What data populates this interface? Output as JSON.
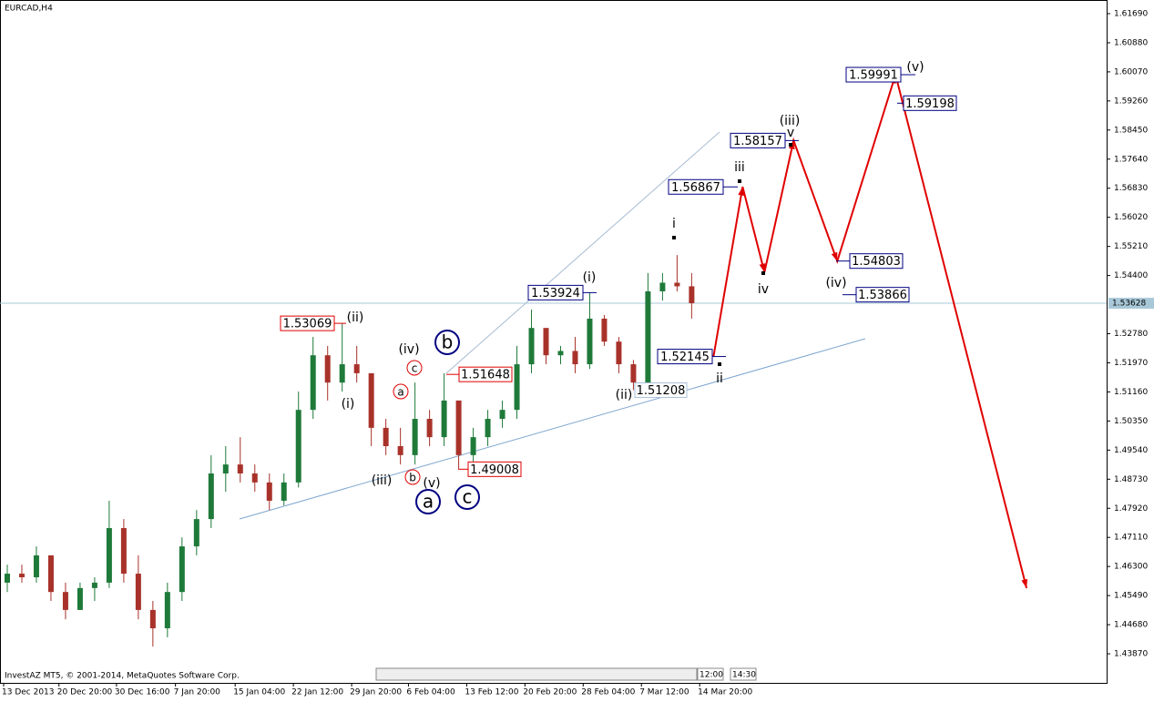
{
  "chart_data": {
    "type": "candlestick",
    "title": "EURCAD,H4",
    "footer": "InvestAZ MT5, © 2001-2014, MetaQuotes Software Corp.",
    "time_buttons": [
      "12:00",
      "14:30"
    ],
    "up_color": "#1f7a3a",
    "down_color": "#a8322a",
    "x": [
      1,
      3,
      5,
      7,
      9,
      11,
      13,
      15,
      17,
      19,
      21,
      23,
      25,
      27,
      29,
      31,
      33,
      35,
      37,
      39,
      41,
      43,
      45,
      47,
      49,
      51,
      53,
      55,
      57,
      59,
      61,
      63,
      65,
      67,
      69,
      71,
      73,
      75,
      77,
      79,
      81,
      83,
      85,
      87,
      89,
      91,
      93,
      95
    ],
    "open": [
      1.4585,
      1.461,
      1.46,
      1.4661,
      1.4559,
      1.4509,
      1.457,
      1.4585,
      1.4737,
      1.461,
      1.4509,
      1.4458,
      1.4559,
      1.4686,
      1.4762,
      1.4889,
      1.4914,
      1.4889,
      1.4864,
      1.4813,
      1.4864,
      1.5066,
      1.5218,
      1.5142,
      1.5193,
      1.5168,
      1.5016,
      1.4965,
      1.494,
      1.5041,
      1.499,
      1.5092,
      1.494,
      1.499,
      1.5041,
      1.5066,
      1.5193,
      1.5294,
      1.5218,
      1.523,
      1.5193,
      1.532,
      1.5256,
      1.5193,
      1.5142,
      1.5396,
      1.542,
      1.541
    ],
    "high": [
      1.4635,
      1.4635,
      1.4686,
      1.4661,
      1.4585,
      1.4585,
      1.46,
      1.4813,
      1.4762,
      1.4661,
      1.4534,
      1.4585,
      1.4711,
      1.4787,
      1.494,
      1.4965,
      1.499,
      1.4914,
      1.4889,
      1.4889,
      1.5117,
      1.5269,
      1.5244,
      1.5307,
      1.5244,
      1.5168,
      1.5041,
      1.5016,
      1.5142,
      1.5066,
      1.5168,
      1.5092,
      1.5016,
      1.5066,
      1.5092,
      1.5244,
      1.5345,
      1.5294,
      1.5244,
      1.5269,
      1.5392,
      1.533,
      1.5269,
      1.5205,
      1.5447,
      1.5447,
      1.5497,
      1.5447
    ],
    "low": [
      1.4559,
      1.4585,
      1.4585,
      1.4534,
      1.4483,
      1.4509,
      1.4534,
      1.457,
      1.4585,
      1.4483,
      1.4407,
      1.4433,
      1.4534,
      1.4661,
      1.4737,
      1.4838,
      1.4864,
      1.4838,
      1.4787,
      1.48,
      1.485,
      1.5041,
      1.5092,
      1.5117,
      1.5142,
      1.4965,
      1.494,
      1.4914,
      1.4914,
      1.4965,
      1.4965,
      1.4901,
      1.4914,
      1.4965,
      1.5016,
      1.5041,
      1.5168,
      1.5193,
      1.5193,
      1.5168,
      1.518,
      1.5244,
      1.5168,
      1.5121,
      1.513,
      1.537,
      1.5396,
      1.532
    ],
    "close": [
      1.461,
      1.46,
      1.4661,
      1.4559,
      1.4509,
      1.457,
      1.4585,
      1.4737,
      1.461,
      1.4509,
      1.4458,
      1.4559,
      1.4686,
      1.4762,
      1.4889,
      1.4914,
      1.4889,
      1.4864,
      1.4813,
      1.4864,
      1.5066,
      1.5218,
      1.5142,
      1.5193,
      1.5168,
      1.5016,
      1.4965,
      1.494,
      1.5041,
      1.499,
      1.5092,
      1.494,
      1.499,
      1.5041,
      1.5066,
      1.5193,
      1.5294,
      1.5218,
      1.523,
      1.5193,
      1.532,
      1.5256,
      1.5193,
      1.5142,
      1.5396,
      1.542,
      1.541,
      1.5363
    ],
    "xlim": [
      0,
      152
    ],
    "xticks": [
      {
        "value": 0,
        "label": "13 Dec 2013"
      },
      {
        "value": 7.6,
        "label": "20 Dec 20:00"
      },
      {
        "value": 15.5,
        "label": "30 Dec 16:00"
      },
      {
        "value": 23.6,
        "label": "7 Jan 20:00"
      },
      {
        "value": 31.8,
        "label": "15 Jan 04:00"
      },
      {
        "value": 39.8,
        "label": "22 Jan 12:00"
      },
      {
        "value": 47.8,
        "label": "29 Jan 20:00"
      },
      {
        "value": 55.6,
        "label": "6 Feb 04:00"
      },
      {
        "value": 63.6,
        "label": "13 Feb 12:00"
      },
      {
        "value": 71.6,
        "label": "20 Feb 20:00"
      },
      {
        "value": 79.6,
        "label": "28 Feb 04:00"
      },
      {
        "value": 87.6,
        "label": "7 Mar 12:00"
      },
      {
        "value": 95.6,
        "label": "14 Mar 20:00"
      }
    ],
    "ylim": [
      1.4306,
      1.6207
    ],
    "yticks": [
      {
        "value": 1.4387,
        "label": "1.43870"
      },
      {
        "value": 1.4468,
        "label": "1.44680"
      },
      {
        "value": 1.4549,
        "label": "1.45490"
      },
      {
        "value": 1.463,
        "label": "1.46300"
      },
      {
        "value": 1.4711,
        "label": "1.47110"
      },
      {
        "value": 1.4792,
        "label": "1.47920"
      },
      {
        "value": 1.4873,
        "label": "1.48730"
      },
      {
        "value": 1.4954,
        "label": "1.49540"
      },
      {
        "value": 1.5035,
        "label": "1.50350"
      },
      {
        "value": 1.5116,
        "label": "1.51160"
      },
      {
        "value": 1.5197,
        "label": "1.51970"
      },
      {
        "value": 1.5278,
        "label": "1.52780"
      },
      {
        "value": 1.544,
        "label": "1.54400"
      },
      {
        "value": 1.5521,
        "label": "1.55210"
      },
      {
        "value": 1.5602,
        "label": "1.56020"
      },
      {
        "value": 1.5683,
        "label": "1.56830"
      },
      {
        "value": 1.5764,
        "label": "1.57640"
      },
      {
        "value": 1.5845,
        "label": "1.58450"
      },
      {
        "value": 1.5926,
        "label": "1.59260"
      },
      {
        "value": 1.6007,
        "label": "1.60070"
      },
      {
        "value": 1.6088,
        "label": "1.60880"
      },
      {
        "value": 1.6169,
        "label": "1.61690"
      }
    ],
    "current_price": 1.53628,
    "current_price_color": "#a8c8d8",
    "price_labels": [
      {
        "value": 1.53069,
        "color": "#e00000"
      },
      {
        "value": 1.51648,
        "color": "#e00000"
      },
      {
        "value": 1.49008,
        "color": "#e00000"
      },
      {
        "value": 1.53924,
        "color": "#000080"
      },
      {
        "value": 1.51208,
        "color": "#a9c0d8"
      },
      {
        "value": 1.52145,
        "color": "#000080"
      },
      {
        "value": 1.56867,
        "color": "#000080"
      },
      {
        "value": 1.58157,
        "color": "#000080"
      },
      {
        "value": 1.59991,
        "color": "#000080"
      },
      {
        "value": 1.59198,
        "color": "#000080"
      },
      {
        "value": 1.54803,
        "color": "#000080"
      },
      {
        "value": 1.53866,
        "color": "#000080"
      }
    ],
    "wave_labels": [
      {
        "text": "(ii)",
        "color": "#e020e0",
        "circled": false
      },
      {
        "text": "(i)",
        "color": "#e020e0",
        "circled": false
      },
      {
        "text": "(iv)",
        "color": "#e020e0",
        "circled": false
      },
      {
        "text": "(iii)",
        "color": "#e020e0",
        "circled": false
      },
      {
        "text": "(v)",
        "color": "#e020e0",
        "circled": false
      },
      {
        "text": "c",
        "color": "#e00000",
        "circled": true
      },
      {
        "text": "a",
        "color": "#e00000",
        "circled": true
      },
      {
        "text": "b",
        "color": "#e00000",
        "circled": true
      },
      {
        "text": "b",
        "color": "#000080",
        "circled": true
      },
      {
        "text": "a",
        "color": "#000080",
        "circled": true
      },
      {
        "text": "c",
        "color": "#000080",
        "circled": true
      },
      {
        "text": "(i)",
        "color": "#000080",
        "circled": false
      },
      {
        "text": "(ii)",
        "color": "#000080",
        "circled": false
      },
      {
        "text": "(iii)",
        "color": "#000080",
        "circled": false
      },
      {
        "text": "(iv)",
        "color": "#000080",
        "circled": false
      },
      {
        "text": "(v)",
        "color": "#000080",
        "circled": false
      },
      {
        "text": "i",
        "color": "#909090",
        "circled": false
      },
      {
        "text": "ii",
        "color": "#909090",
        "circled": false
      },
      {
        "text": "iii",
        "color": "#909090",
        "circled": false
      },
      {
        "text": "iv",
        "color": "#909090",
        "circled": false
      },
      {
        "text": "v",
        "color": "#909090",
        "circled": false
      }
    ],
    "forecast": {
      "color": "#e00000",
      "x": [
        98,
        102,
        105,
        109,
        115,
        123,
        141
      ],
      "values": [
        1.5214,
        1.5687,
        1.5449,
        1.5816,
        1.548,
        1.5999,
        1.457
      ]
    }
  }
}
